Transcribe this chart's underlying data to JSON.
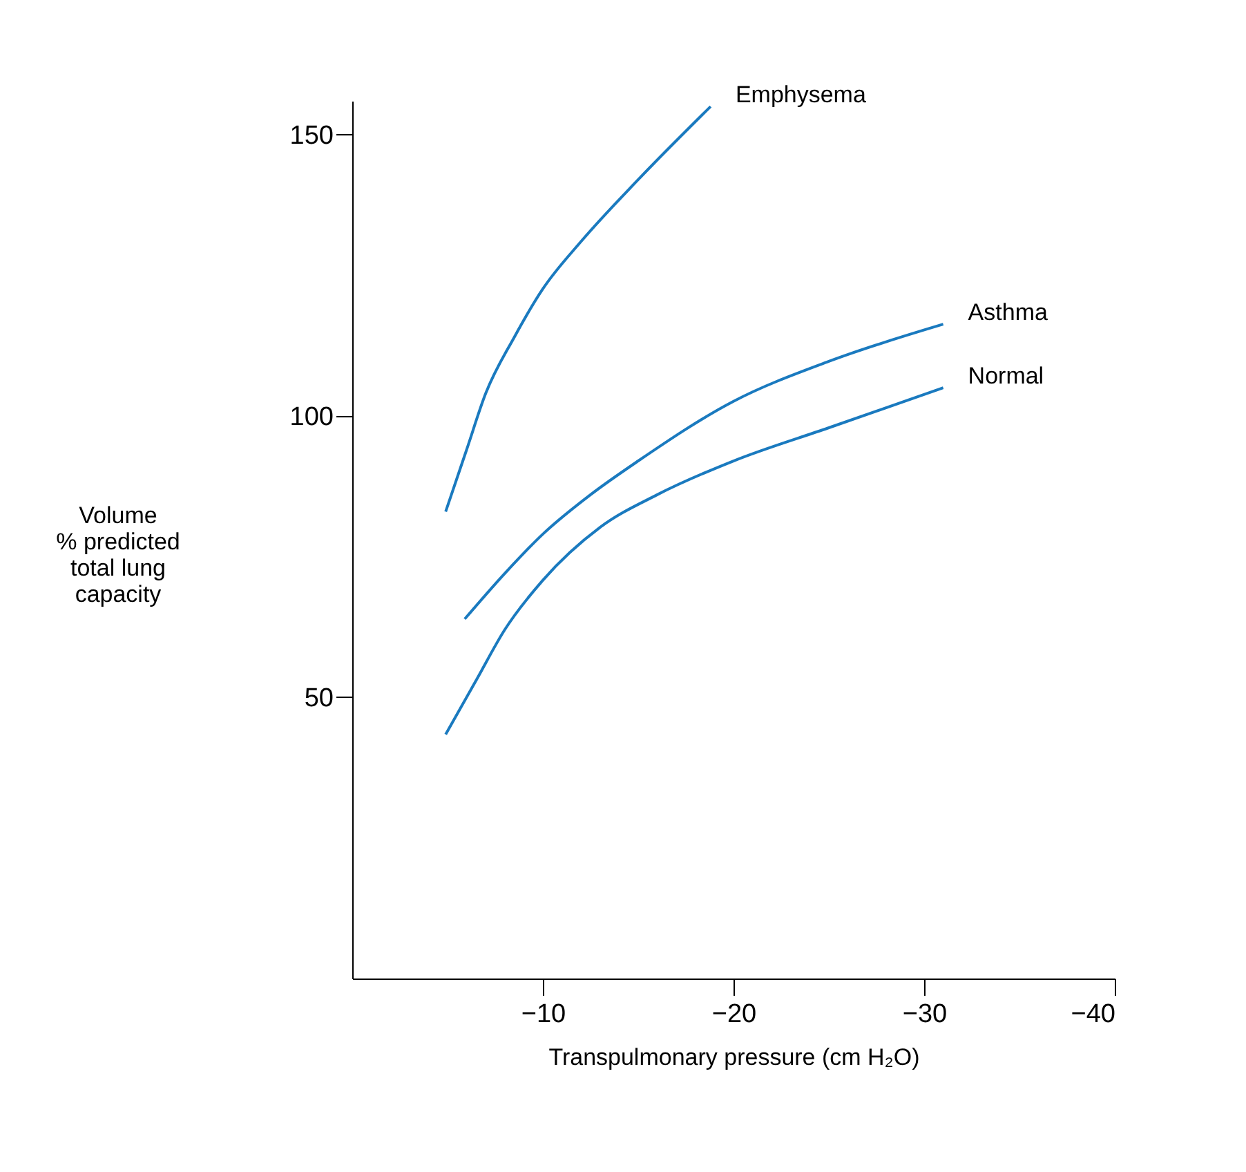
{
  "chart_data": {
    "type": "line",
    "xlabel": "Transpulmonary pressure (cm H₂O)",
    "ylabel": "Volume\n% predicted\ntotal lung\ncapacity",
    "xlim": [
      0,
      -40
    ],
    "xticks": [
      -10,
      -20,
      -30,
      -40
    ],
    "ylim": [
      0,
      156
    ],
    "yticks": [
      50,
      100,
      150
    ],
    "grid": false,
    "legend": false,
    "marker": "none",
    "line_style": "solid",
    "series": [
      {
        "name": "Emphysema",
        "color": "#1a7abf",
        "x": [
          -4.9,
          -6,
          -7,
          -8.5,
          -10,
          -12,
          -15,
          -18.8
        ],
        "values": [
          83,
          94,
          104,
          114,
          122.6,
          131,
          142,
          155
        ]
      },
      {
        "name": "Asthma",
        "color": "#1a7abf",
        "x": [
          -5.9,
          -8,
          -10,
          -12.5,
          -15,
          -20,
          -25,
          -31
        ],
        "values": [
          63.9,
          72,
          79,
          86,
          92,
          102.6,
          109.7,
          116.3
        ]
      },
      {
        "name": "Normal",
        "color": "#1a7abf",
        "x": [
          -4.9,
          -6.5,
          -8,
          -10,
          -13,
          -16,
          -20,
          -25,
          -31
        ],
        "values": [
          43.4,
          53,
          62,
          70.8,
          80.2,
          86,
          92,
          97.9,
          105
        ]
      }
    ]
  }
}
